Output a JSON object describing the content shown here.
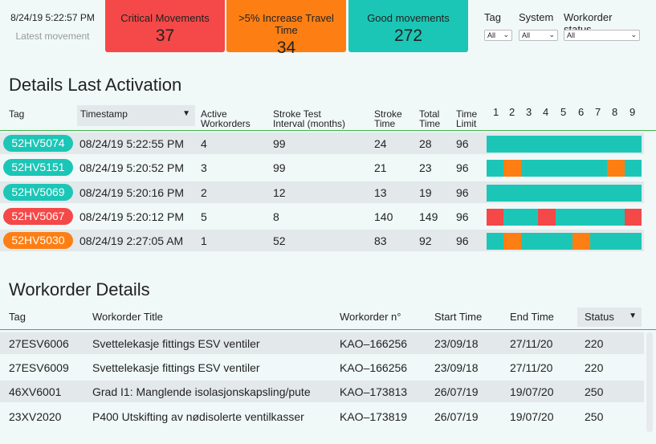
{
  "header": {
    "latest_timestamp": "8/24/19 5:22:57 PM",
    "latest_label": "Latest movement",
    "cards": [
      {
        "title": "Critical Movements",
        "value": "37",
        "color": "#f54848"
      },
      {
        "title": ">5% Increase Travel Time",
        "value": "34",
        "color": "#fd7f14"
      },
      {
        "title": "Good movements",
        "value": "272",
        "color": "#1cc6b6"
      }
    ]
  },
  "filters": {
    "tag": {
      "label": "Tag",
      "value": "All"
    },
    "system": {
      "label": "System",
      "value": "All"
    },
    "status": {
      "label": "Workorder status",
      "value": "All"
    }
  },
  "activation": {
    "title": "Details Last Activation",
    "columns": {
      "tag": "Tag",
      "timestamp": "Timestamp",
      "active1": "Active",
      "active2": "Workorders",
      "stroke_test1": "Stroke Test",
      "stroke_test2": "Interval (months)",
      "stroke_time1": "Stroke",
      "stroke_time2": "Time",
      "total_time1": "Total",
      "total_time2": "Time",
      "time_limit1": "Time",
      "time_limit2": "Limit"
    },
    "bar_labels": [
      "1",
      "2",
      "3",
      "4",
      "5",
      "6",
      "7",
      "8",
      "9"
    ],
    "rows": [
      {
        "tag": "52HV5074",
        "tag_color": "#1cc6b6",
        "timestamp": "08/24/19 5:22:55 PM",
        "active": "4",
        "interval": "99",
        "stroke": "24",
        "total": "28",
        "limit": "96",
        "segments": [
          {
            "start": 0,
            "end": 9,
            "color": "#1cc6b6"
          }
        ]
      },
      {
        "tag": "52HV5151",
        "tag_color": "#1cc6b6",
        "timestamp": "08/24/19 5:20:52 PM",
        "active": "3",
        "interval": "99",
        "stroke": "21",
        "total": "23",
        "limit": "96",
        "segments": [
          {
            "start": 0,
            "end": 1,
            "color": "#1cc6b6"
          },
          {
            "start": 1,
            "end": 2,
            "color": "#fd7f14"
          },
          {
            "start": 2,
            "end": 7,
            "color": "#1cc6b6"
          },
          {
            "start": 7,
            "end": 8,
            "color": "#fd7f14"
          },
          {
            "start": 8,
            "end": 9,
            "color": "#1cc6b6"
          }
        ]
      },
      {
        "tag": "52HV5069",
        "tag_color": "#1cc6b6",
        "timestamp": "08/24/19 5:20:16 PM",
        "active": "2",
        "interval": "12",
        "stroke": "13",
        "total": "19",
        "limit": "96",
        "segments": [
          {
            "start": 0,
            "end": 9,
            "color": "#1cc6b6"
          }
        ]
      },
      {
        "tag": "52HV5067",
        "tag_color": "#f54848",
        "timestamp": "08/24/19 5:20:12 PM",
        "active": "5",
        "interval": "8",
        "stroke": "140",
        "total": "149",
        "limit": "96",
        "segments": [
          {
            "start": 0,
            "end": 1,
            "color": "#f54848"
          },
          {
            "start": 1,
            "end": 3,
            "color": "#1cc6b6"
          },
          {
            "start": 3,
            "end": 4,
            "color": "#f54848"
          },
          {
            "start": 4,
            "end": 8,
            "color": "#1cc6b6"
          },
          {
            "start": 8,
            "end": 9,
            "color": "#f54848"
          }
        ]
      },
      {
        "tag": "52HV5030",
        "tag_color": "#fd7f14",
        "timestamp": "08/24/19 2:27:05 AM",
        "active": "1",
        "interval": "52",
        "stroke": "83",
        "total": "92",
        "limit": "96",
        "segments": [
          {
            "start": 0,
            "end": 1,
            "color": "#1cc6b6"
          },
          {
            "start": 1,
            "end": 2,
            "color": "#fd7f14"
          },
          {
            "start": 2,
            "end": 5,
            "color": "#1cc6b6"
          },
          {
            "start": 5,
            "end": 6,
            "color": "#fd7f14"
          },
          {
            "start": 6,
            "end": 9,
            "color": "#1cc6b6"
          }
        ]
      }
    ]
  },
  "workorders": {
    "title": "Workorder Details",
    "columns": {
      "tag": "Tag",
      "title": "Workorder Title",
      "number": "Workorder n°",
      "start": "Start Time",
      "end": "End Time",
      "status": "Status"
    },
    "rows": [
      {
        "tag": "27ESV6006",
        "title": "Svettelekasje fittings ESV ventiler",
        "number": "KAO–166256",
        "start": "23/09/18",
        "end": "27/11/20",
        "status": "220"
      },
      {
        "tag": "27ESV6009",
        "title": "Svettelekasje fittings ESV ventiler",
        "number": "KAO–166256",
        "start": "23/09/18",
        "end": "27/11/20",
        "status": "220"
      },
      {
        "tag": "46XV6001",
        "title": "Grad I1: Manglende isolasjonskapsling/pute",
        "number": "KAO–173813",
        "start": "26/07/19",
        "end": "19/07/20",
        "status": "250"
      },
      {
        "tag": "23XV2020",
        "title": "P400 Utskifting av nødisolerte ventilkasser",
        "number": "KAO–173819",
        "start": "26/07/19",
        "end": "19/07/20",
        "status": "250"
      }
    ]
  }
}
